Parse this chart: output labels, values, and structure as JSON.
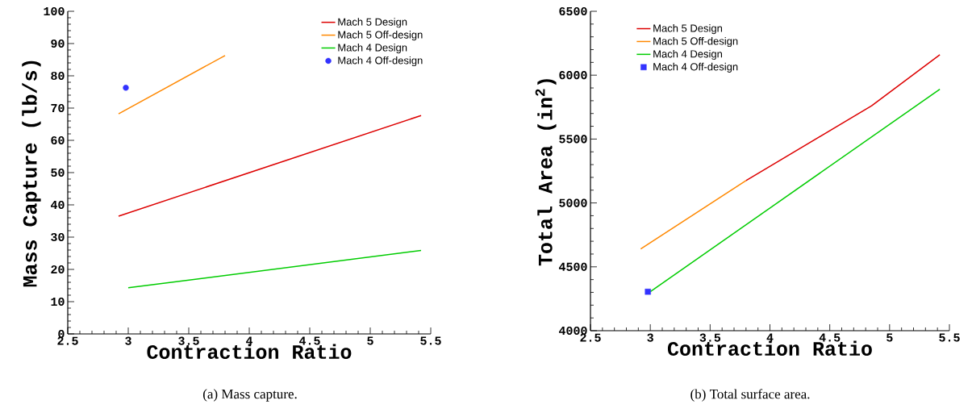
{
  "chart_data": [
    {
      "type": "line",
      "xlabel": "Contraction Ratio",
      "ylabel": "Mass Capture (lb/s)",
      "xlim": [
        2.5,
        5.5
      ],
      "xticks": [
        2.5,
        3,
        3.5,
        4,
        4.5,
        5,
        5.5
      ],
      "ylim": [
        0,
        100
      ],
      "yticks": [
        0,
        10,
        20,
        30,
        40,
        50,
        60,
        70,
        80,
        90,
        100
      ],
      "legend": "top right",
      "annotations": [
        "(a) Mass capture."
      ],
      "series": [
        {
          "name": "Mach 5 Design",
          "color": "#dd0000",
          "x": [
            2.92,
            5.42
          ],
          "values": [
            36.5,
            67.7
          ]
        },
        {
          "name": "Mach 5 Off-design",
          "color": "#ff8800",
          "x": [
            2.92,
            3.8
          ],
          "values": [
            68.2,
            86.3
          ]
        },
        {
          "name": "Mach 4 Design",
          "color": "#00cc00",
          "x": [
            3.0,
            5.42
          ],
          "values": [
            14.3,
            25.9
          ]
        },
        {
          "name": "Mach 4 Off-design",
          "color": "#3333ff",
          "type": "scatter",
          "marker": "circle",
          "x": [
            2.98
          ],
          "values": [
            76.3
          ]
        }
      ]
    },
    {
      "type": "line",
      "xlabel": "Contraction Ratio",
      "ylabel": "Total Area (in$^{2}$)",
      "xlim": [
        2.5,
        5.5
      ],
      "xticks": [
        2.5,
        3,
        3.5,
        4,
        4.5,
        5,
        5.5
      ],
      "ylim": [
        4000,
        6500
      ],
      "yticks": [
        4000,
        4500,
        5000,
        5500,
        6000,
        6500
      ],
      "legend": "top left",
      "annotations": [
        "(b) Total surface area."
      ],
      "series": [
        {
          "name": "Mach 5 Design",
          "color": "#dd0000",
          "x": [
            3.8,
            4.85,
            5.42
          ],
          "values": [
            5175,
            5760,
            6160
          ]
        },
        {
          "name": "Mach 5 Off-design",
          "color": "#ff8800",
          "x": [
            2.92,
            3.8
          ],
          "values": [
            4640,
            5175
          ]
        },
        {
          "name": "Mach 4 Design",
          "color": "#00cc00",
          "x": [
            3.0,
            5.42
          ],
          "values": [
            4305,
            5890
          ]
        },
        {
          "name": "Mach 4 Off-design",
          "color": "#3333ff",
          "type": "scatter",
          "marker": "square",
          "x": [
            2.98
          ],
          "values": [
            4305
          ]
        }
      ]
    }
  ]
}
